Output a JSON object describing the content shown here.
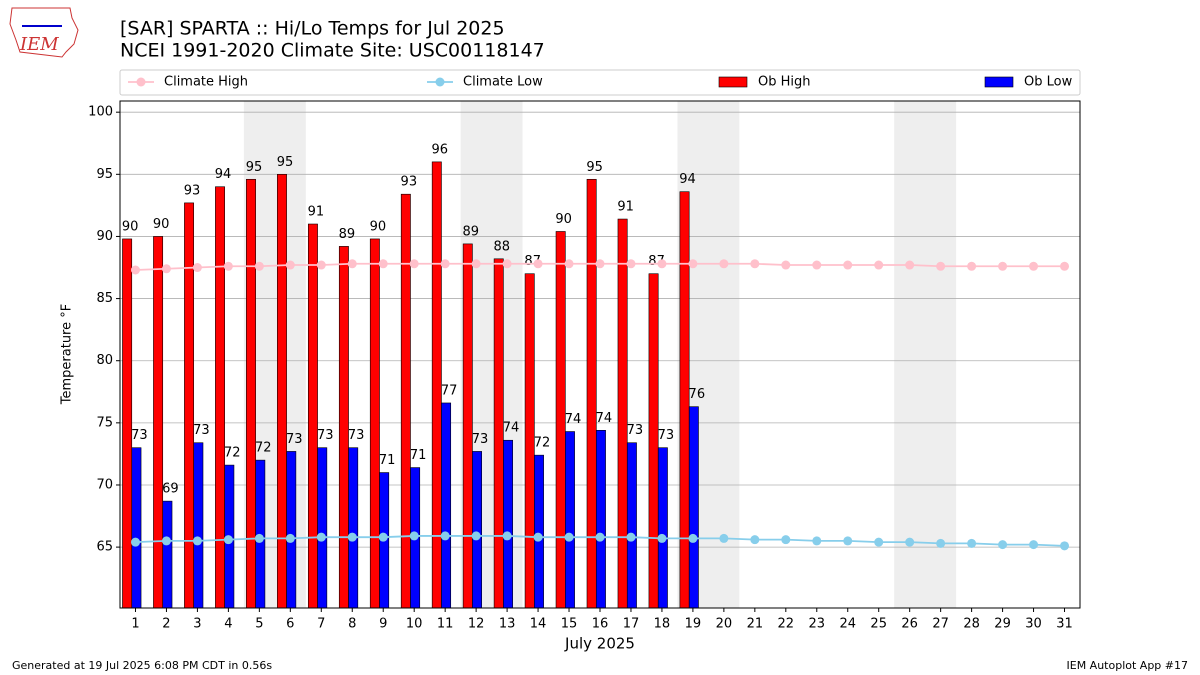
{
  "chart_data": {
    "type": "bar",
    "title": "[SAR] SPARTA :: Hi/Lo Temps for Jul 2025",
    "subtitle": "NCEI 1991-2020 Climate Site: USC00118147",
    "logo_text": "IEM",
    "xlabel": "July 2025",
    "ylabel": "Temperature °F",
    "footer_left": "Generated at 19 Jul 2025 6:08 PM CDT in 0.56s",
    "footer_right": "IEM Autoplot App #17",
    "x": [
      1,
      2,
      3,
      4,
      5,
      6,
      7,
      8,
      9,
      10,
      11,
      12,
      13,
      14,
      15,
      16,
      17,
      18,
      19,
      20,
      21,
      22,
      23,
      24,
      25,
      26,
      27,
      28,
      29,
      30,
      31
    ],
    "xlim": [
      0.5,
      31.5
    ],
    "xticks": [
      1,
      2,
      3,
      4,
      5,
      6,
      7,
      8,
      9,
      10,
      11,
      12,
      13,
      14,
      15,
      16,
      17,
      18,
      19,
      20,
      21,
      22,
      23,
      24,
      25,
      26,
      27,
      28,
      29,
      30,
      31
    ],
    "ylim": [
      60.1,
      100.9
    ],
    "yticks": [
      65,
      70,
      75,
      80,
      85,
      90,
      95,
      100
    ],
    "grid": true,
    "shaded_spans": [
      [
        4.5,
        6.5
      ],
      [
        11.5,
        13.5
      ],
      [
        18.5,
        20.5
      ],
      [
        25.5,
        27.5
      ]
    ],
    "shade_color": "#eeeeee",
    "series": [
      {
        "name": "Climate High",
        "type": "line",
        "color": "pink",
        "values": [
          87.3,
          87.4,
          87.5,
          87.6,
          87.6,
          87.7,
          87.7,
          87.8,
          87.8,
          87.8,
          87.8,
          87.8,
          87.8,
          87.8,
          87.8,
          87.8,
          87.8,
          87.8,
          87.8,
          87.8,
          87.8,
          87.7,
          87.7,
          87.7,
          87.7,
          87.7,
          87.6,
          87.6,
          87.6,
          87.6,
          87.6
        ]
      },
      {
        "name": "Climate Low",
        "type": "line",
        "color": "skyblue",
        "values": [
          65.4,
          65.5,
          65.5,
          65.6,
          65.7,
          65.7,
          65.8,
          65.8,
          65.8,
          65.9,
          65.9,
          65.9,
          65.9,
          65.8,
          65.8,
          65.8,
          65.8,
          65.7,
          65.7,
          65.7,
          65.6,
          65.6,
          65.5,
          65.5,
          65.4,
          65.4,
          65.3,
          65.3,
          65.2,
          65.2,
          65.1
        ]
      },
      {
        "name": "Ob High",
        "type": "bar",
        "color": "red",
        "values": [
          89.8,
          90.0,
          92.7,
          94.0,
          94.6,
          95.0,
          91.0,
          89.2,
          89.8,
          93.4,
          96.0,
          89.4,
          88.2,
          87.0,
          90.4,
          94.6,
          91.4,
          87.0,
          93.6,
          null,
          null,
          null,
          null,
          null,
          null,
          null,
          null,
          null,
          null,
          null,
          null
        ],
        "value_labels": [
          90,
          90,
          93,
          94,
          95,
          95,
          91,
          89,
          90,
          93,
          96,
          89,
          88,
          87,
          90,
          95,
          91,
          87,
          94,
          null,
          null,
          null,
          null,
          null,
          null,
          null,
          null,
          null,
          null,
          null,
          null
        ]
      },
      {
        "name": "Ob Low",
        "type": "bar",
        "color": "blue",
        "values": [
          73.0,
          68.7,
          73.4,
          71.6,
          72.0,
          72.7,
          73.0,
          73.0,
          71.0,
          71.4,
          76.6,
          72.7,
          73.6,
          72.4,
          74.3,
          74.4,
          73.4,
          73.0,
          76.3,
          null,
          null,
          null,
          null,
          null,
          null,
          null,
          null,
          null,
          null,
          null,
          null
        ],
        "value_labels": [
          73,
          69,
          73,
          72,
          72,
          73,
          73,
          73,
          71,
          71,
          77,
          73,
          74,
          72,
          74,
          74,
          73,
          73,
          76,
          null,
          null,
          null,
          null,
          null,
          null,
          null,
          null,
          null,
          null,
          null,
          null
        ]
      }
    ]
  }
}
